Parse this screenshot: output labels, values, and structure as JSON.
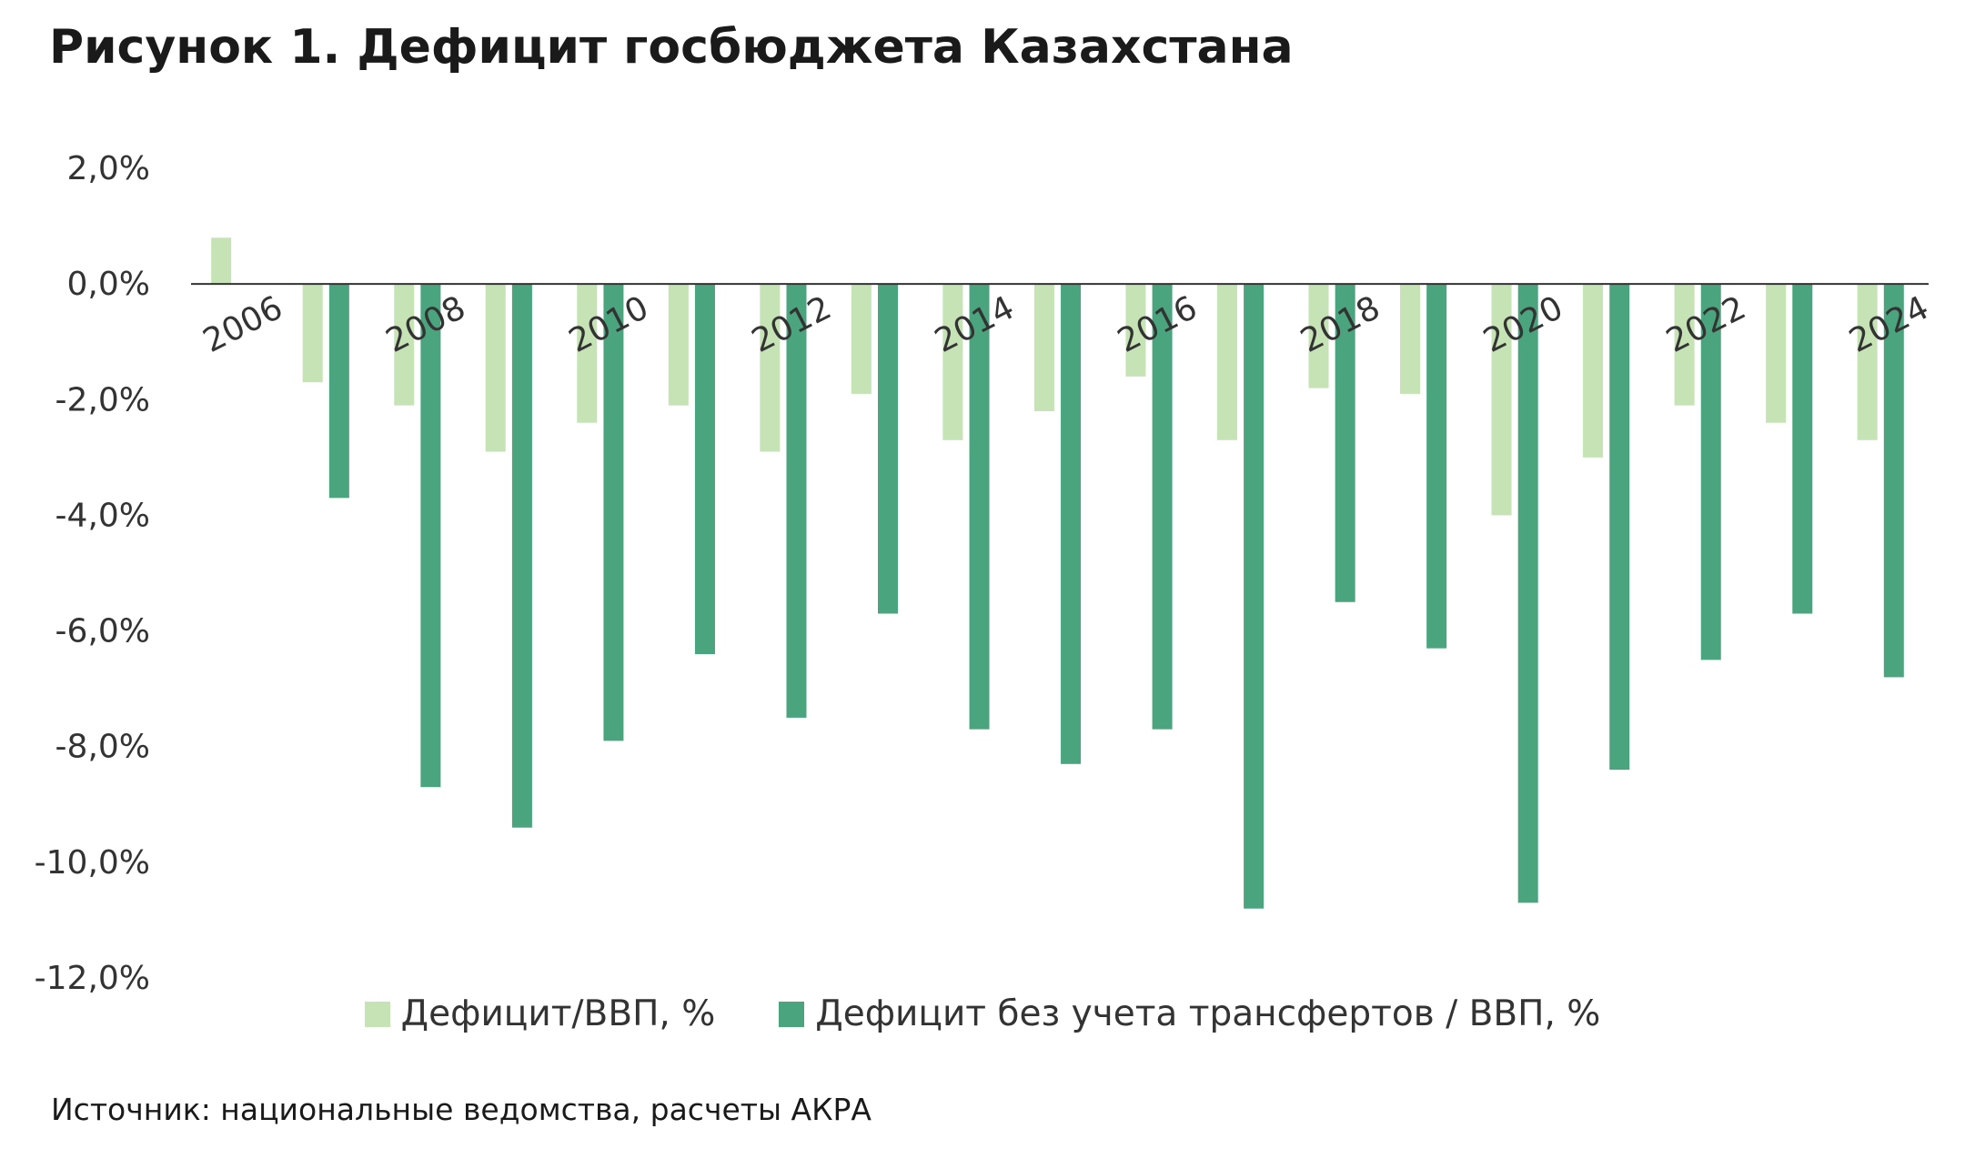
{
  "title": "Рисунок 1. Дефицит госбюджета Казахстана",
  "source": "Источник: национальные ведомства, расчеты АКРА",
  "colors": {
    "light": "#c5e3b4",
    "dark": "#4aa57f",
    "axis": "#333333"
  },
  "chart_data": {
    "type": "bar",
    "categories": [
      "2006",
      "2007",
      "2008",
      "2009",
      "2010",
      "2011",
      "2012",
      "2013",
      "2014",
      "2015",
      "2016",
      "2017",
      "2018",
      "2019",
      "2020",
      "2021",
      "2022",
      "2023",
      "2024"
    ],
    "x_tick_labels": [
      "2006",
      "2008",
      "2010",
      "2012",
      "2014",
      "2016",
      "2018",
      "2020",
      "2022",
      "2024"
    ],
    "y_tick_labels": [
      "2,0%",
      "0,0%",
      "-2,0%",
      "-4,0%",
      "-6,0%",
      "-8,0%",
      "-10,0%",
      "-12,0%"
    ],
    "ylim": [
      -12,
      2
    ],
    "y_ticks": [
      2,
      0,
      -2,
      -4,
      -6,
      -8,
      -10,
      -12
    ],
    "grid": false,
    "legend_position": "bottom",
    "series": [
      {
        "name": "Дефицит/ВВП, %",
        "color": "#c5e3b4",
        "values": [
          0.8,
          -1.7,
          -2.1,
          -2.9,
          -2.4,
          -2.1,
          -2.9,
          -1.9,
          -2.7,
          -2.2,
          -1.6,
          -2.7,
          -1.8,
          -1.9,
          -4.0,
          -3.0,
          -2.1,
          -2.4,
          -2.7
        ]
      },
      {
        "name": "Дефицит без учета трансфертов  / ВВП, %",
        "color": "#4aa57f",
        "values": [
          0,
          -3.7,
          -8.7,
          -9.4,
          -7.9,
          -6.4,
          -7.5,
          -5.7,
          -7.7,
          -8.3,
          -7.7,
          -10.8,
          -5.5,
          -6.3,
          -10.7,
          -8.4,
          -6.5,
          -5.7,
          -6.8
        ]
      }
    ]
  }
}
